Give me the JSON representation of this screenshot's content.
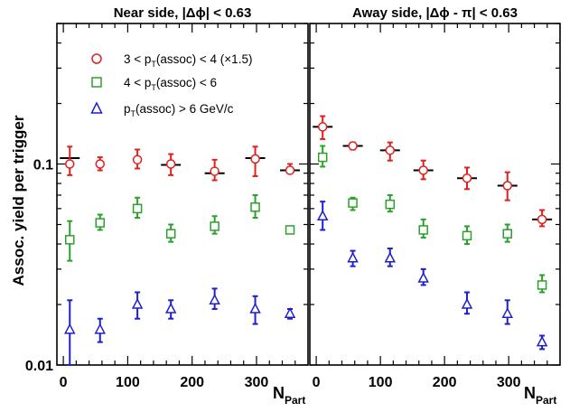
{
  "chart_data": {
    "type": "scatter",
    "y_scale": "log",
    "ylim": [
      0.01,
      0.5
    ],
    "xlim": [
      -10,
      380
    ],
    "ylabel": "Assoc. yield per trigger",
    "xlabel_main": "N",
    "xlabel_sub": "Part",
    "y_tick_labels": [
      {
        "value": 0.1,
        "label": "0.1"
      },
      {
        "value": 0.01,
        "label": "0.01"
      }
    ],
    "x_tick_labels": [
      {
        "value": 0,
        "label": "0"
      },
      {
        "value": 100,
        "label": "100"
      },
      {
        "value": 200,
        "label": "200"
      },
      {
        "value": 300,
        "label": "300"
      }
    ],
    "legend": {
      "placement": "top-left of left panel",
      "entries": [
        {
          "series": "red",
          "pre": "3 < p",
          "sub": "T",
          "post": "(assoc) < 4  (×1.5)"
        },
        {
          "series": "green",
          "pre": "4 < p",
          "sub": "T",
          "post": "(assoc) < 6"
        },
        {
          "series": "blue",
          "pre": "p",
          "sub": "T",
          "post": "(assoc) > 6 GeV/c"
        }
      ]
    },
    "colors": {
      "red": "#e02020",
      "green": "#2ca02c",
      "blue": "#1f1fd0",
      "black": "#000000"
    },
    "panels": [
      {
        "title": "Near side, |Δϕ| < 0.63",
        "series": [
          {
            "key": "red",
            "marker": "circle",
            "points": [
              {
                "x": 10,
                "y": 0.1,
                "lo": 0.088,
                "hi": 0.122
              },
              {
                "x": 57,
                "y": 0.1,
                "lo": 0.093,
                "hi": 0.108
              },
              {
                "x": 115,
                "y": 0.105,
                "lo": 0.095,
                "hi": 0.118
              },
              {
                "x": 167,
                "y": 0.1,
                "lo": 0.088,
                "hi": 0.112
              },
              {
                "x": 235,
                "y": 0.092,
                "lo": 0.083,
                "hi": 0.105
              },
              {
                "x": 298,
                "y": 0.106,
                "lo": 0.087,
                "hi": 0.122
              },
              {
                "x": 352,
                "y": 0.093,
                "lo": 0.091,
                "hi": 0.1
              }
            ]
          },
          {
            "key": "green",
            "marker": "square",
            "points": [
              {
                "x": 10,
                "y": 0.042,
                "lo": 0.033,
                "hi": 0.052
              },
              {
                "x": 57,
                "y": 0.051,
                "lo": 0.047,
                "hi": 0.056
              },
              {
                "x": 115,
                "y": 0.06,
                "lo": 0.054,
                "hi": 0.068
              },
              {
                "x": 167,
                "y": 0.045,
                "lo": 0.041,
                "hi": 0.05
              },
              {
                "x": 235,
                "y": 0.049,
                "lo": 0.045,
                "hi": 0.055
              },
              {
                "x": 298,
                "y": 0.061,
                "lo": 0.054,
                "hi": 0.07
              },
              {
                "x": 352,
                "y": 0.047,
                "lo": 0.046,
                "hi": 0.048
              }
            ]
          },
          {
            "key": "blue",
            "marker": "triangle",
            "points": [
              {
                "x": 10,
                "y": 0.015,
                "lo": 0.01,
                "hi": 0.021
              },
              {
                "x": 57,
                "y": 0.015,
                "lo": 0.013,
                "hi": 0.017
              },
              {
                "x": 115,
                "y": 0.02,
                "lo": 0.017,
                "hi": 0.023
              },
              {
                "x": 167,
                "y": 0.019,
                "lo": 0.017,
                "hi": 0.021
              },
              {
                "x": 235,
                "y": 0.021,
                "lo": 0.019,
                "hi": 0.024
              },
              {
                "x": 298,
                "y": 0.019,
                "lo": 0.016,
                "hi": 0.022
              },
              {
                "x": 352,
                "y": 0.018,
                "lo": 0.017,
                "hi": 0.019
              }
            ]
          }
        ],
        "reference_lines": [
          {
            "x": 10,
            "y": 0.107
          },
          {
            "x": 167,
            "y": 0.099
          },
          {
            "x": 235,
            "y": 0.09
          },
          {
            "x": 298,
            "y": 0.107
          },
          {
            "x": 352,
            "y": 0.093
          }
        ]
      },
      {
        "title": "Away side, |Δϕ - π| < 0.63",
        "series": [
          {
            "key": "red",
            "marker": "circle",
            "points": [
              {
                "x": 10,
                "y": 0.153,
                "lo": 0.133,
                "hi": 0.173
              },
              {
                "x": 57,
                "y": 0.123,
                "lo": 0.118,
                "hi": 0.128
              },
              {
                "x": 115,
                "y": 0.117,
                "lo": 0.104,
                "hi": 0.128
              },
              {
                "x": 167,
                "y": 0.093,
                "lo": 0.084,
                "hi": 0.104
              },
              {
                "x": 235,
                "y": 0.085,
                "lo": 0.075,
                "hi": 0.096
              },
              {
                "x": 298,
                "y": 0.078,
                "lo": 0.066,
                "hi": 0.091
              },
              {
                "x": 352,
                "y": 0.053,
                "lo": 0.049,
                "hi": 0.059
              }
            ]
          },
          {
            "key": "green",
            "marker": "square",
            "points": [
              {
                "x": 10,
                "y": 0.108,
                "lo": 0.097,
                "hi": 0.123
              },
              {
                "x": 57,
                "y": 0.064,
                "lo": 0.059,
                "hi": 0.068
              },
              {
                "x": 115,
                "y": 0.063,
                "lo": 0.058,
                "hi": 0.07
              },
              {
                "x": 167,
                "y": 0.047,
                "lo": 0.043,
                "hi": 0.053
              },
              {
                "x": 235,
                "y": 0.044,
                "lo": 0.04,
                "hi": 0.049
              },
              {
                "x": 298,
                "y": 0.045,
                "lo": 0.041,
                "hi": 0.05
              },
              {
                "x": 352,
                "y": 0.025,
                "lo": 0.023,
                "hi": 0.028
              }
            ]
          },
          {
            "key": "blue",
            "marker": "triangle",
            "points": [
              {
                "x": 10,
                "y": 0.055,
                "lo": 0.047,
                "hi": 0.065
              },
              {
                "x": 57,
                "y": 0.034,
                "lo": 0.031,
                "hi": 0.037
              },
              {
                "x": 115,
                "y": 0.034,
                "lo": 0.031,
                "hi": 0.038
              },
              {
                "x": 167,
                "y": 0.027,
                "lo": 0.025,
                "hi": 0.03
              },
              {
                "x": 235,
                "y": 0.02,
                "lo": 0.018,
                "hi": 0.023
              },
              {
                "x": 298,
                "y": 0.018,
                "lo": 0.016,
                "hi": 0.021
              },
              {
                "x": 352,
                "y": 0.013,
                "lo": 0.012,
                "hi": 0.014
              }
            ]
          }
        ],
        "reference_lines": [
          {
            "x": 10,
            "y": 0.153
          },
          {
            "x": 57,
            "y": 0.123
          },
          {
            "x": 115,
            "y": 0.117
          },
          {
            "x": 167,
            "y": 0.093
          },
          {
            "x": 235,
            "y": 0.085
          },
          {
            "x": 298,
            "y": 0.078
          },
          {
            "x": 352,
            "y": 0.053
          }
        ]
      }
    ]
  }
}
